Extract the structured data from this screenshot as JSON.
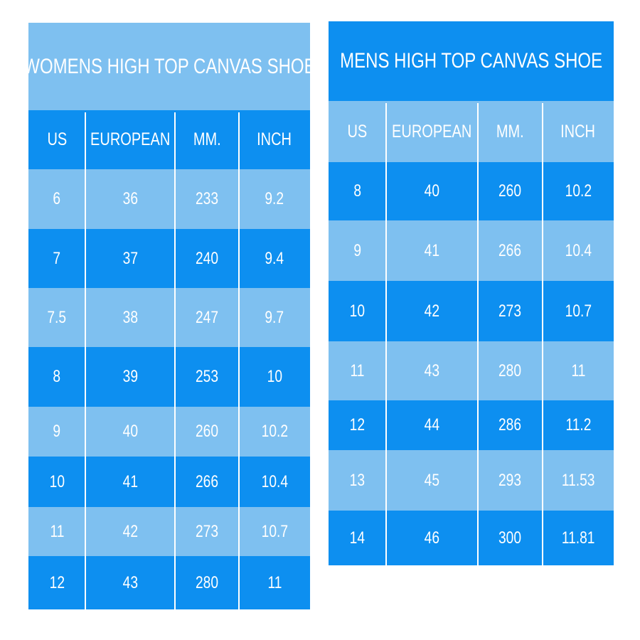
{
  "colors": {
    "dark": "#0d8ff0",
    "light": "#7ec0f0",
    "text": "#ffffff"
  },
  "womens": {
    "title": "WOMENS HIGH TOP CANVAS SHOE",
    "headers": [
      "US",
      "EUROPEAN",
      "MM.",
      "INCH"
    ],
    "rows": [
      [
        "6",
        "36",
        "233",
        "9.2"
      ],
      [
        "7",
        "37",
        "240",
        "9.4"
      ],
      [
        "7.5",
        "38",
        "247",
        "9.7"
      ],
      [
        "8",
        "39",
        "253",
        "10"
      ],
      [
        "9",
        "40",
        "260",
        "10.2"
      ],
      [
        "10",
        "41",
        "266",
        "10.4"
      ],
      [
        "11",
        "42",
        "273",
        "10.7"
      ],
      [
        "12",
        "43",
        "280",
        "11"
      ]
    ]
  },
  "mens": {
    "title": "MENS HIGH TOP CANVAS SHOE",
    "headers": [
      "US",
      "EUROPEAN",
      "MM.",
      "INCH"
    ],
    "rows": [
      [
        "8",
        "40",
        "260",
        "10.2"
      ],
      [
        "9",
        "41",
        "266",
        "10.4"
      ],
      [
        "10",
        "42",
        "273",
        "10.7"
      ],
      [
        "11",
        "43",
        "280",
        "11"
      ],
      [
        "12",
        "44",
        "286",
        "11.2"
      ],
      [
        "13",
        "45",
        "293",
        "11.53"
      ],
      [
        "14",
        "46",
        "300",
        "11.81"
      ]
    ]
  }
}
